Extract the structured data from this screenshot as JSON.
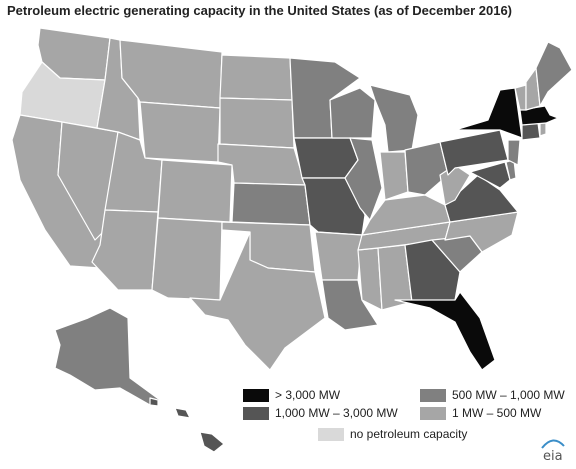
{
  "title": "Petroleum electric generating capacity in the United States (as of December 2016)",
  "colors": {
    "gt_3000": "#0a0a0a",
    "c1000_3000": "#555555",
    "c500_1000": "#808080",
    "c1_500": "#a6a6a6",
    "none": "#d9d9d9"
  },
  "legend": [
    {
      "label": "> 3,000 MW",
      "color": "#0a0a0a"
    },
    {
      "label": "500 MW – 1,000 MW",
      "color": "#808080"
    },
    {
      "label": "1,000 MW – 3,000 MW",
      "color": "#555555"
    },
    {
      "label": "1 MW – 500 MW",
      "color": "#a6a6a6"
    },
    {
      "label": "no petroleum capacity",
      "color": "#d9d9d9"
    }
  ],
  "states": {
    "OR": "none",
    "NY": "gt_3000",
    "MA": "gt_3000",
    "FL": "gt_3000",
    "IA": "c1000_3000",
    "MO": "c1000_3000",
    "PA": "c1000_3000",
    "VA": "c1000_3000",
    "GA": "c1000_3000",
    "CT": "c1000_3000",
    "HI": "c1000_3000",
    "MD": "c1000_3000",
    "MN": "c500_1000",
    "WI": "c500_1000",
    "MI": "c500_1000",
    "IL": "c500_1000",
    "OH": "c500_1000",
    "KS": "c500_1000",
    "LA": "c500_1000",
    "SC": "c500_1000",
    "ME": "c500_1000",
    "AK": "c500_1000",
    "NJ": "c500_1000",
    "DE": "c500_1000"
  },
  "logo": {
    "text": "eia"
  }
}
